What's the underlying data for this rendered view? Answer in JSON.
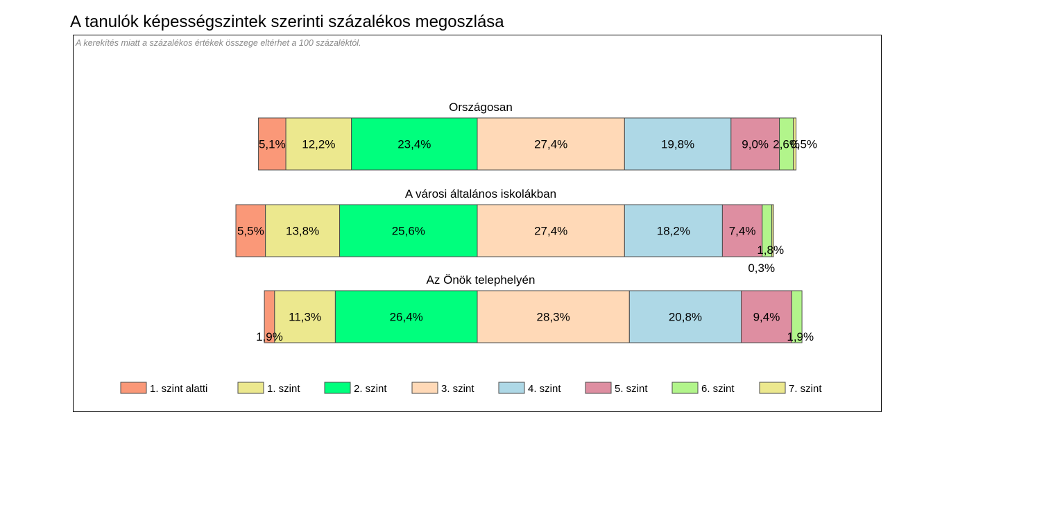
{
  "page": {
    "title": "A tanulók képességszintek szerinti százalékos megoszlása",
    "note": "A kerekítés miatt a  százalékos értékek összege eltérhet a 100 százaléktól."
  },
  "chart_data": {
    "type": "bar",
    "orientation": "horizontal",
    "stacked": true,
    "xlabel": "",
    "ylabel": "",
    "grid": false,
    "legend_position": "bottom",
    "levels": [
      "1. szint alatti",
      "1. szint",
      "2. szint",
      "3. szint",
      "4. szint",
      "5. szint",
      "6. szint",
      "7. szint"
    ],
    "colors": [
      "#fa9878",
      "#ece88e",
      "#00ff7d",
      "#ffd9b7",
      "#aed8e6",
      "#de8ea1",
      "#b2f58b",
      "#ece88e"
    ],
    "groups": [
      {
        "title": "Országosan",
        "values": [
          5.1,
          12.2,
          23.4,
          27.4,
          19.8,
          9.0,
          2.6,
          0.5
        ],
        "labels": [
          "5,1%",
          "12,2%",
          "23,4%",
          "27,4%",
          "19,8%",
          "9,0%",
          "2,6%",
          "0,5%"
        ]
      },
      {
        "title": "A városi általános iskolákban",
        "values": [
          5.5,
          13.8,
          25.6,
          27.4,
          18.2,
          7.4,
          1.8,
          0.3
        ],
        "labels": [
          "5,5%",
          "13,8%",
          "25,6%",
          "27,4%",
          "18,2%",
          "7,4%",
          "1,8%",
          "0,3%"
        ]
      },
      {
        "title": "Az Önök telephelyén",
        "values": [
          1.9,
          11.3,
          26.4,
          28.3,
          20.8,
          9.4,
          1.9,
          0.0
        ],
        "labels": [
          "1,9%",
          "11,3%",
          "26,4%",
          "28,3%",
          "20,8%",
          "9,4%",
          "1,9%",
          ""
        ]
      }
    ]
  }
}
